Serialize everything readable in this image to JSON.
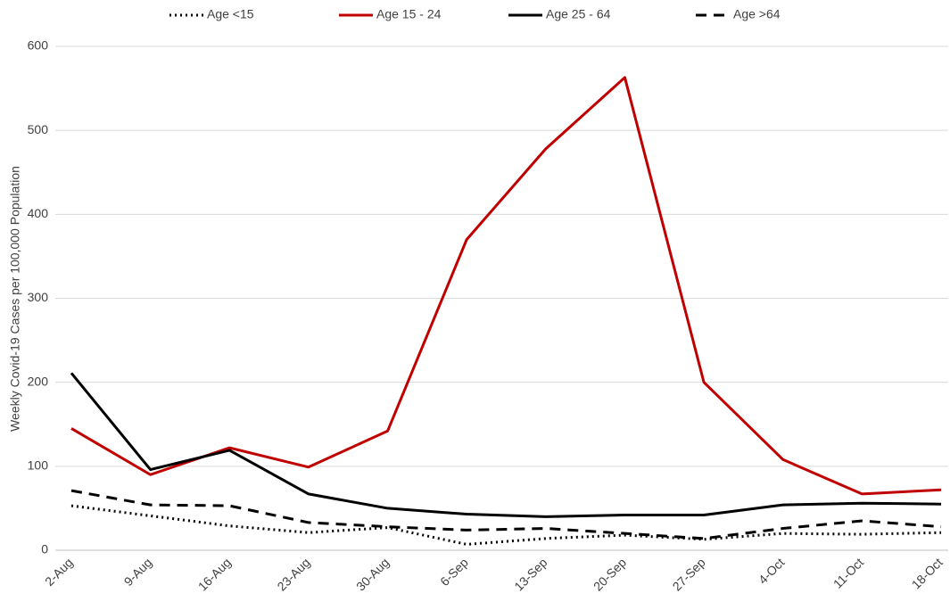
{
  "chart_data": {
    "type": "line",
    "y_label": "Weekly Covid-19 Cases per 100,000 Population",
    "categories": [
      "2-Aug",
      "9-Aug",
      "16-Aug",
      "23-Aug",
      "30-Aug",
      "6-Sep",
      "13-Sep",
      "20-Sep",
      "27-Sep",
      "4-Oct",
      "11-Oct",
      "18-Oct"
    ],
    "series": [
      {
        "name": "Age <15",
        "color": "#000000",
        "style": "dotted",
        "values": [
          53,
          41,
          29,
          21,
          27,
          7,
          14,
          18,
          13,
          20,
          19,
          21
        ]
      },
      {
        "name": "Age 15 - 24",
        "color": "#c00000",
        "style": "solid",
        "values": [
          145,
          90,
          122,
          99,
          142,
          370,
          478,
          563,
          200,
          108,
          67,
          72
        ]
      },
      {
        "name": "Age 25 - 64",
        "color": "#000000",
        "style": "solid",
        "values": [
          211,
          96,
          119,
          67,
          50,
          43,
          40,
          42,
          42,
          54,
          56,
          55
        ]
      },
      {
        "name": "Age >64",
        "color": "#000000",
        "style": "dashed",
        "values": [
          71,
          54,
          53,
          33,
          28,
          24,
          26,
          20,
          14,
          26,
          35,
          28
        ]
      }
    ],
    "ylim": [
      0,
      600
    ],
    "yticks": [
      0,
      100,
      200,
      300,
      400,
      500,
      600
    ],
    "grid": true,
    "legend": "top"
  }
}
